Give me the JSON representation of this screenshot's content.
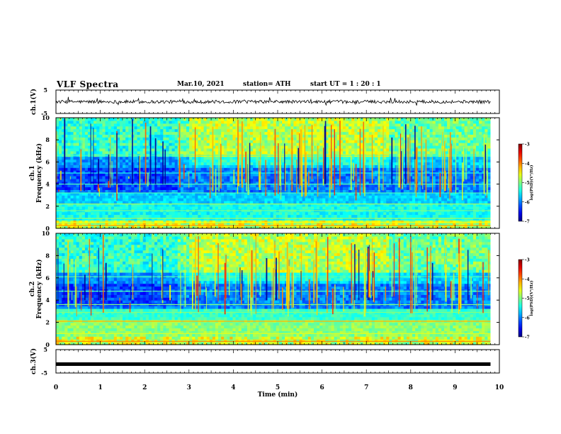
{
  "header": {
    "title": "VLF Spectra",
    "date": "Mar.10, 2021",
    "station": "station= ATH",
    "start": "start  UT =   1 : 20 : 1"
  },
  "chart_data": {
    "type": "spectrogram",
    "x_axis": {
      "label": "Time  (min)",
      "range": [
        0,
        10
      ],
      "ticks": [
        "0",
        "1",
        "2",
        "3",
        "4",
        "5",
        "6",
        "7",
        "8",
        "9",
        "10"
      ],
      "data_end_min": 9.8
    },
    "panels": [
      {
        "kind": "waveform",
        "ylabel": "ch.1(V)",
        "ylim": [
          -5,
          5
        ],
        "yticks": [
          "5",
          "-5"
        ],
        "baseline_v": 0
      },
      {
        "kind": "spectrogram",
        "ylabel_channel": "ch.1",
        "ylabel": "Frequency  (kHz)",
        "ylim": [
          0,
          10
        ],
        "yticks": [
          "0",
          "2",
          "4",
          "6",
          "8",
          "10"
        ],
        "colorbar": {
          "label": "log(PSD)(V²/Hz)",
          "ticks": [
            "-3",
            "-4",
            "-5",
            "-6",
            "-7"
          ],
          "range": [
            -7,
            -3
          ]
        }
      },
      {
        "kind": "spectrogram",
        "ylabel_channel": "ch.2",
        "ylabel": "Frequency  (kHz)",
        "ylim": [
          0,
          10
        ],
        "yticks": [
          "0",
          "2",
          "4",
          "6",
          "8",
          "10"
        ],
        "colorbar": {
          "label": "log(PSD)(V²/Hz)",
          "ticks": [
            "-3",
            "-4",
            "-5",
            "-6",
            "-7"
          ],
          "range": [
            -7,
            -3
          ]
        }
      },
      {
        "kind": "waveform",
        "ylabel": "ch.3(V)",
        "ylim": [
          -5,
          5
        ],
        "yticks": [
          "5",
          "-5"
        ],
        "baseline_v": -1.2
      }
    ]
  }
}
